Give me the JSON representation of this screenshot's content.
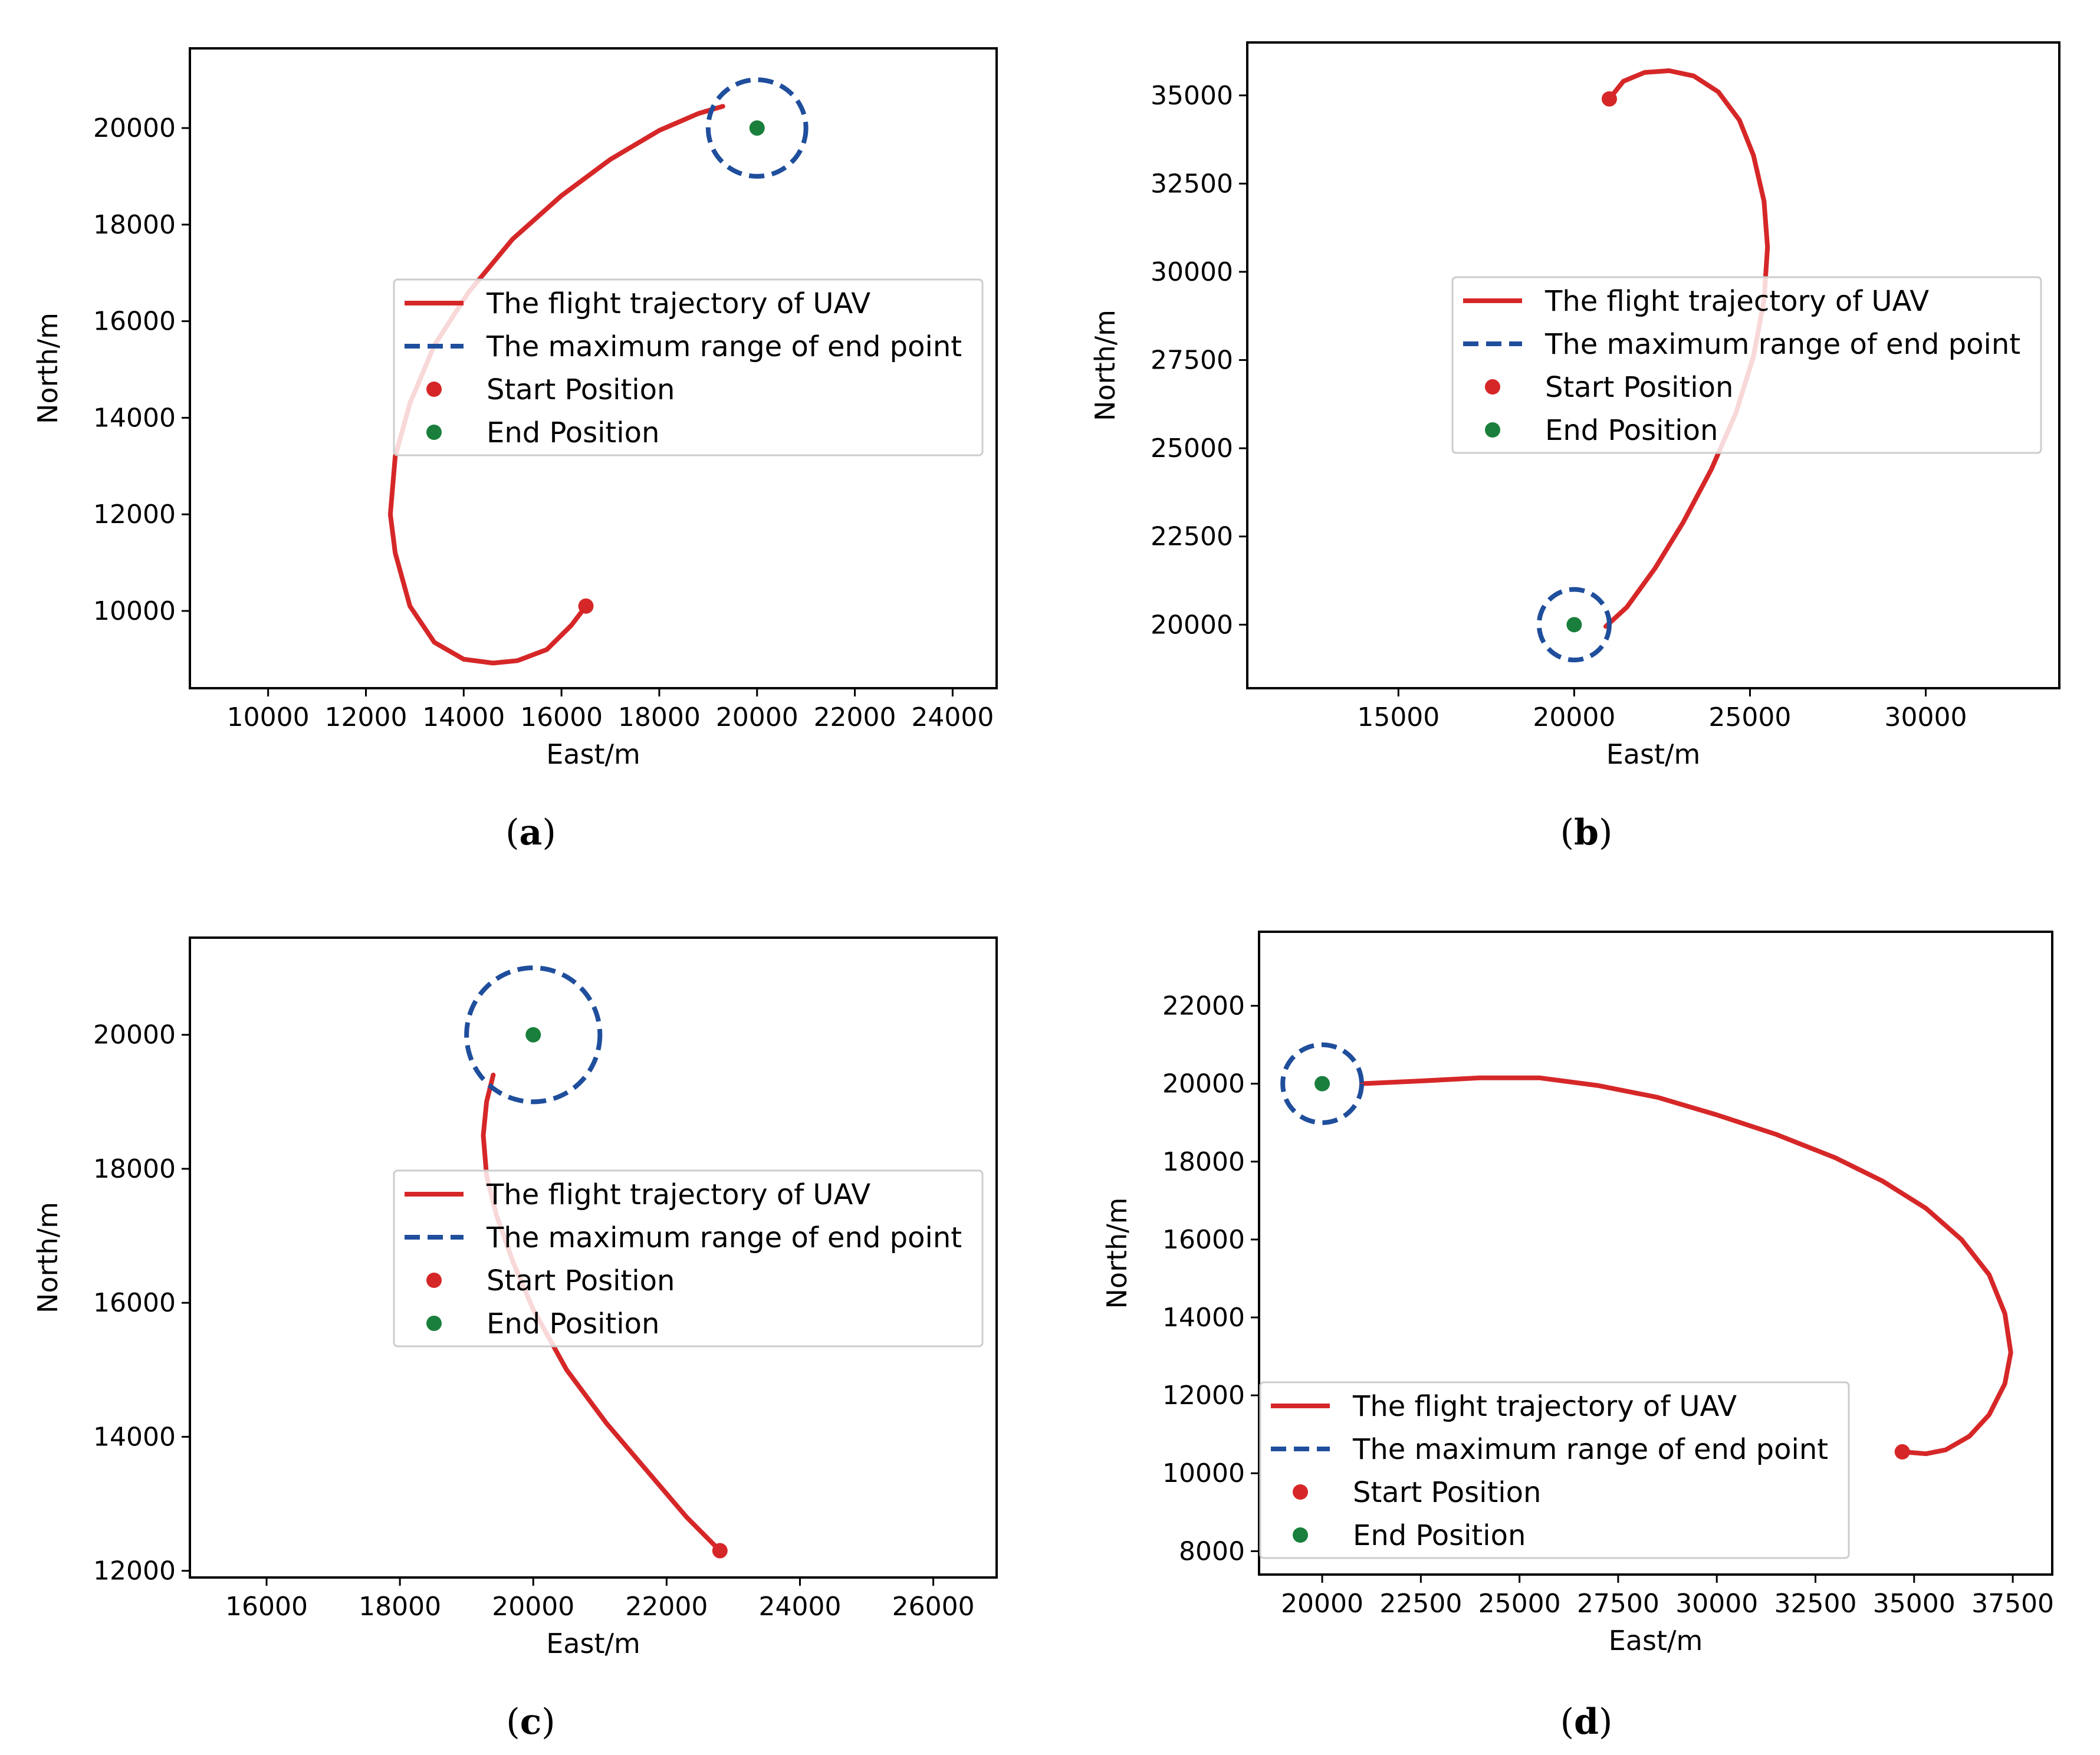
{
  "figure": {
    "colors": {
      "trajectory": "#d62728",
      "range_circle": "#1f4e9c",
      "start": "#d62728",
      "end": "#1a7f3c",
      "axes": "#000000"
    }
  },
  "chart_data": [
    {
      "id": "a",
      "type": "line",
      "caption": "a",
      "xlabel": "East/m",
      "ylabel": "North/m",
      "xlim": [
        8400,
        24900
      ],
      "ylim": [
        8400,
        21650
      ],
      "xticks": [
        10000,
        12000,
        14000,
        16000,
        18000,
        20000,
        22000,
        24000
      ],
      "yticks": [
        10000,
        12000,
        14000,
        16000,
        18000,
        20000
      ],
      "legend": {
        "position": "center-right",
        "entries": [
          "The flight trajectory of UAV",
          "The maximum range of end point",
          "Start Position",
          "End Position"
        ]
      },
      "start": [
        16500,
        10100
      ],
      "end": [
        20000,
        20000
      ],
      "range_radius": 1000,
      "trajectory": [
        [
          16500,
          10100
        ],
        [
          16200,
          9700
        ],
        [
          15700,
          9200
        ],
        [
          15100,
          8970
        ],
        [
          14600,
          8920
        ],
        [
          14000,
          9000
        ],
        [
          13400,
          9350
        ],
        [
          12900,
          10100
        ],
        [
          12600,
          11200
        ],
        [
          12500,
          12000
        ],
        [
          12600,
          13200
        ],
        [
          12900,
          14300
        ],
        [
          13400,
          15500
        ],
        [
          14100,
          16600
        ],
        [
          15000,
          17700
        ],
        [
          16000,
          18600
        ],
        [
          17000,
          19350
        ],
        [
          18000,
          19950
        ],
        [
          18800,
          20300
        ],
        [
          19300,
          20450
        ]
      ]
    },
    {
      "id": "b",
      "type": "line",
      "caption": "b",
      "xlabel": "East/m",
      "ylabel": "North/m",
      "xlim": [
        10700,
        33800
      ],
      "ylim": [
        18200,
        36500
      ],
      "xticks": [
        15000,
        20000,
        25000,
        30000
      ],
      "yticks": [
        20000,
        22500,
        25000,
        27500,
        30000,
        32500,
        35000
      ],
      "legend": {
        "position": "center-right",
        "entries": [
          "The flight trajectory of UAV",
          "The maximum range of end point",
          "Start Position",
          "End Position"
        ]
      },
      "start": [
        21000,
        34900
      ],
      "end": [
        20000,
        20000
      ],
      "range_radius": 1000,
      "trajectory": [
        [
          21000,
          34900
        ],
        [
          21400,
          35400
        ],
        [
          22000,
          35650
        ],
        [
          22700,
          35700
        ],
        [
          23400,
          35550
        ],
        [
          24100,
          35100
        ],
        [
          24700,
          34300
        ],
        [
          25100,
          33300
        ],
        [
          25400,
          32000
        ],
        [
          25500,
          30700
        ],
        [
          25400,
          29200
        ],
        [
          25100,
          27600
        ],
        [
          24600,
          26000
        ],
        [
          23900,
          24400
        ],
        [
          23100,
          22900
        ],
        [
          22300,
          21600
        ],
        [
          21500,
          20500
        ],
        [
          20900,
          19950
        ]
      ]
    },
    {
      "id": "c",
      "type": "line",
      "caption": "c",
      "xlabel": "East/m",
      "ylabel": "North/m",
      "xlim": [
        14850,
        26950
      ],
      "ylim": [
        11900,
        21450
      ],
      "xticks": [
        16000,
        18000,
        20000,
        22000,
        24000,
        26000
      ],
      "yticks": [
        12000,
        14000,
        16000,
        18000,
        20000
      ],
      "legend": {
        "position": "center-right",
        "entries": [
          "The flight trajectory of UAV",
          "The maximum range of end point",
          "Start Position",
          "End Position"
        ]
      },
      "start": [
        22800,
        12300
      ],
      "end": [
        20000,
        20000
      ],
      "range_radius": 1000,
      "trajectory": [
        [
          22800,
          12300
        ],
        [
          22300,
          12800
        ],
        [
          21700,
          13500
        ],
        [
          21100,
          14200
        ],
        [
          20500,
          15000
        ],
        [
          20000,
          15900
        ],
        [
          19700,
          16600
        ],
        [
          19450,
          17300
        ],
        [
          19300,
          17900
        ],
        [
          19250,
          18500
        ],
        [
          19300,
          19000
        ],
        [
          19400,
          19400
        ]
      ]
    },
    {
      "id": "d",
      "type": "line",
      "caption": "d",
      "xlabel": "East/m",
      "ylabel": "North/m",
      "xlim": [
        18400,
        38500
      ],
      "ylim": [
        7400,
        23900
      ],
      "xticks": [
        20000,
        22500,
        25000,
        27500,
        30000,
        32500,
        35000,
        37500
      ],
      "yticks": [
        8000,
        10000,
        12000,
        14000,
        16000,
        18000,
        20000,
        22000
      ],
      "legend": {
        "position": "lower-left",
        "entries": [
          "The flight trajectory of UAV",
          "The maximum range of end point",
          "Start Position",
          "End Position"
        ]
      },
      "start": [
        34700,
        10550
      ],
      "end": [
        20000,
        20000
      ],
      "range_radius": 1000,
      "trajectory": [
        [
          34700,
          10550
        ],
        [
          35300,
          10500
        ],
        [
          35800,
          10600
        ],
        [
          36400,
          10950
        ],
        [
          36900,
          11500
        ],
        [
          37300,
          12300
        ],
        [
          37450,
          13100
        ],
        [
          37300,
          14100
        ],
        [
          36900,
          15100
        ],
        [
          36200,
          16000
        ],
        [
          35300,
          16800
        ],
        [
          34200,
          17500
        ],
        [
          33000,
          18100
        ],
        [
          31500,
          18700
        ],
        [
          30000,
          19200
        ],
        [
          28500,
          19650
        ],
        [
          27000,
          19950
        ],
        [
          25500,
          20150
        ],
        [
          24000,
          20150
        ],
        [
          22500,
          20070
        ],
        [
          21000,
          20000
        ]
      ]
    }
  ]
}
